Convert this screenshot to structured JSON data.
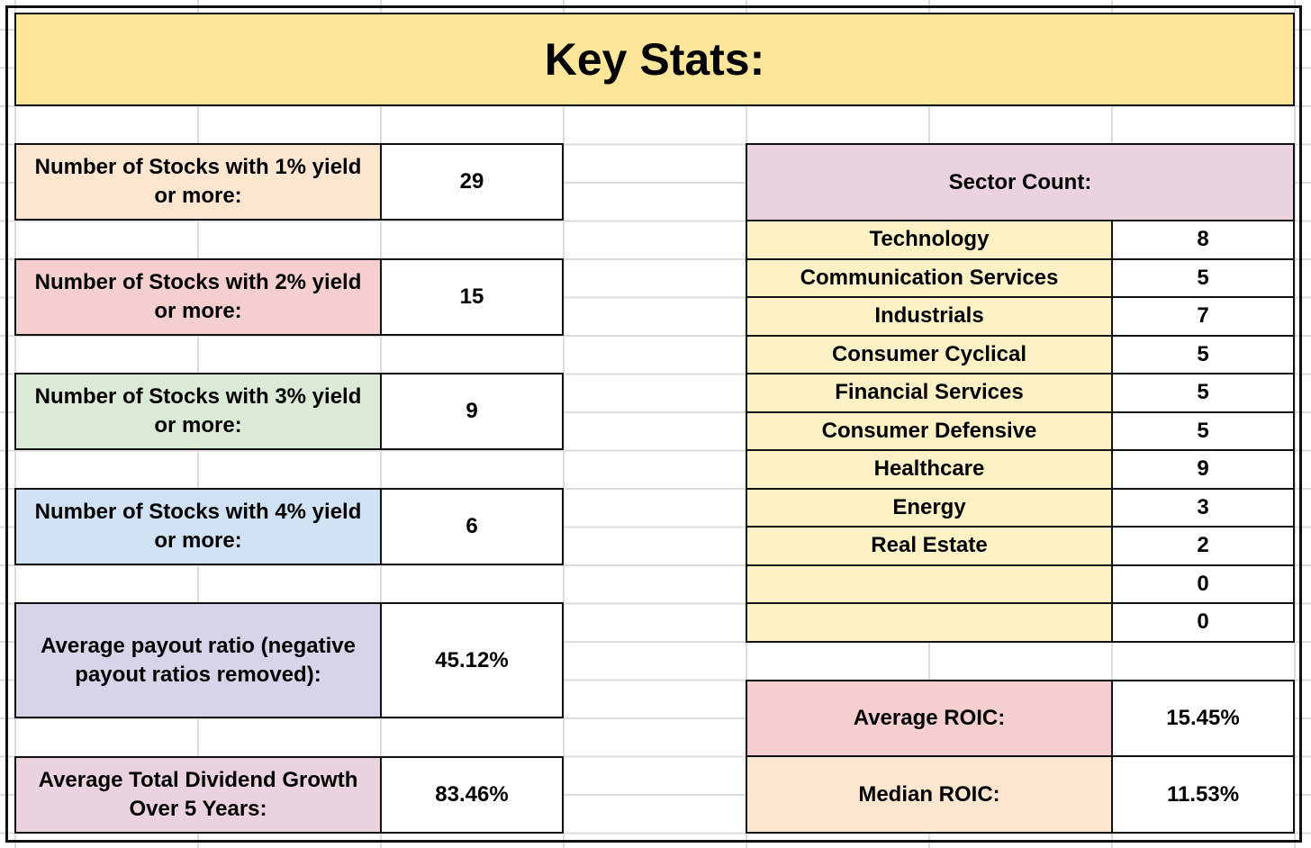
{
  "title": "Key Stats:",
  "left_stats": [
    {
      "label": "Number of Stocks with 1% yield or more:",
      "value": "29",
      "color": "#fce6cf"
    },
    {
      "label": "Number of Stocks with 2% yield or more:",
      "value": "15",
      "color": "#f5cfd0"
    },
    {
      "label": "Number of Stocks with 3% yield or more:",
      "value": "9",
      "color": "#dbead6"
    },
    {
      "label": "Number of Stocks with 4% yield or more:",
      "value": "6",
      "color": "#d0e1f3"
    },
    {
      "label": "Average payout ratio (negative payout ratios removed):",
      "value": "45.12%",
      "color": "#d9d3ea"
    },
    {
      "label": "Average Total Dividend Growth Over 5 Years:",
      "value": "83.46%",
      "color": "#ead2df"
    }
  ],
  "sector": {
    "header": "Sector Count:",
    "rows": [
      {
        "name": "Technology",
        "count": "8"
      },
      {
        "name": "Communication Services",
        "count": "5"
      },
      {
        "name": "Industrials",
        "count": "7"
      },
      {
        "name": "Consumer Cyclical",
        "count": "5"
      },
      {
        "name": "Financial Services",
        "count": "5"
      },
      {
        "name": "Consumer Defensive",
        "count": "5"
      },
      {
        "name": "Healthcare",
        "count": "9"
      },
      {
        "name": "Energy",
        "count": "3"
      },
      {
        "name": "Real Estate",
        "count": "2"
      },
      {
        "name": "",
        "count": "0"
      },
      {
        "name": "",
        "count": "0"
      }
    ]
  },
  "roic": [
    {
      "label": "Average ROIC:",
      "value": "15.45%",
      "color": "#f5cfd0"
    },
    {
      "label": "Median ROIC:",
      "value": "11.53%",
      "color": "#fce6cf"
    }
  ]
}
